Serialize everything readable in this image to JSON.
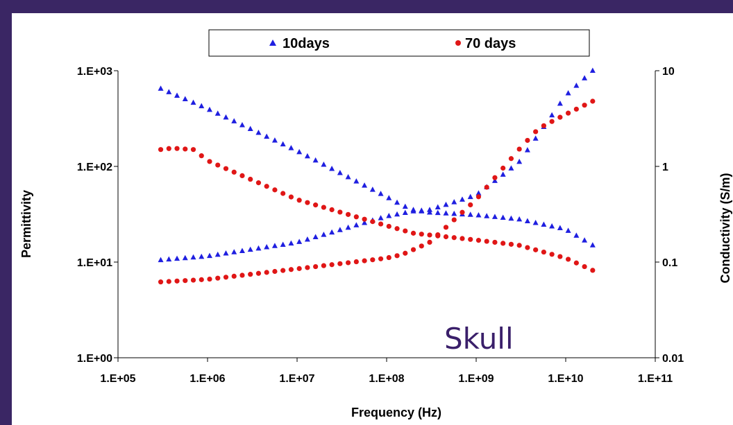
{
  "colors": {
    "background": "#3a2664",
    "panel": "#ffffff",
    "series_10days": "#1f1fe0",
    "series_70days": "#e01616",
    "annotation": "#3a1f6a"
  },
  "chart_data": {
    "type": "scatter",
    "annotation": "Skull",
    "x_axis": {
      "label": "Frequency (Hz)",
      "scale": "log",
      "range": [
        100000,
        100000000000
      ],
      "tick_values": [
        100000,
        1000000,
        10000000,
        100000000,
        1000000000,
        10000000000,
        100000000000
      ],
      "tick_labels": [
        "1.E+05",
        "1.E+06",
        "1.E+07",
        "1.E+08",
        "1.E+09",
        "1.E+10",
        "1.E+11"
      ]
    },
    "y_axis_left": {
      "label": "Permittivity",
      "scale": "log",
      "range": [
        1,
        1000
      ],
      "tick_values": [
        1,
        10,
        100,
        1000
      ],
      "tick_labels": [
        "1.E+00",
        "1.E+01",
        "1.E+02",
        "1.E+03"
      ]
    },
    "y_axis_right": {
      "label": "Conductivity (S/m)",
      "scale": "log",
      "range": [
        0.01,
        10
      ],
      "tick_values": [
        0.01,
        0.1,
        1,
        10
      ],
      "tick_labels": [
        "0.01",
        "0.1",
        "1",
        "10"
      ]
    },
    "legend": {
      "position": "top",
      "entries": [
        {
          "name": "10days",
          "marker": "triangle"
        },
        {
          "name": "70 days",
          "marker": "circle"
        }
      ]
    },
    "series": [
      {
        "name": "10days",
        "marker": "triangle",
        "permittivity": [
          [
            300000,
            650
          ],
          [
            1000000,
            400
          ],
          [
            10000000,
            145
          ],
          [
            100000000,
            48
          ],
          [
            150000000,
            39
          ],
          [
            200000000,
            35
          ],
          [
            300000000,
            33
          ],
          [
            1000000000,
            31
          ],
          [
            3000000000,
            28
          ],
          [
            10000000000,
            22
          ],
          [
            20000000000,
            15
          ]
        ],
        "conductivity": [
          [
            300000,
            0.105
          ],
          [
            1000000,
            0.115
          ],
          [
            10000000,
            0.16
          ],
          [
            100000000,
            0.3
          ],
          [
            200000000,
            0.34
          ],
          [
            300000000,
            0.35
          ],
          [
            1000000000,
            0.5
          ],
          [
            3000000000,
            1.1
          ],
          [
            10000000000,
            5.5
          ],
          [
            20000000000,
            10
          ]
        ]
      },
      {
        "name": "70 days",
        "marker": "circle",
        "permittivity": [
          [
            300000,
            150
          ],
          [
            400000,
            155
          ],
          [
            700000,
            150
          ],
          [
            1000000,
            115
          ],
          [
            10000000,
            45
          ],
          [
            100000000,
            24
          ],
          [
            200000000,
            20
          ],
          [
            1000000000,
            17
          ],
          [
            3000000000,
            15
          ],
          [
            10000000000,
            11
          ],
          [
            20000000000,
            8.2
          ]
        ],
        "conductivity": [
          [
            300000,
            0.062
          ],
          [
            1000000,
            0.066
          ],
          [
            10000000,
            0.085
          ],
          [
            100000000,
            0.11
          ],
          [
            150000000,
            0.12
          ],
          [
            300000000,
            0.16
          ],
          [
            1000000000,
            0.45
          ],
          [
            3000000000,
            1.5
          ],
          [
            5000000000,
            2.5
          ],
          [
            10000000000,
            3.5
          ],
          [
            20000000000,
            4.8
          ]
        ]
      }
    ]
  }
}
